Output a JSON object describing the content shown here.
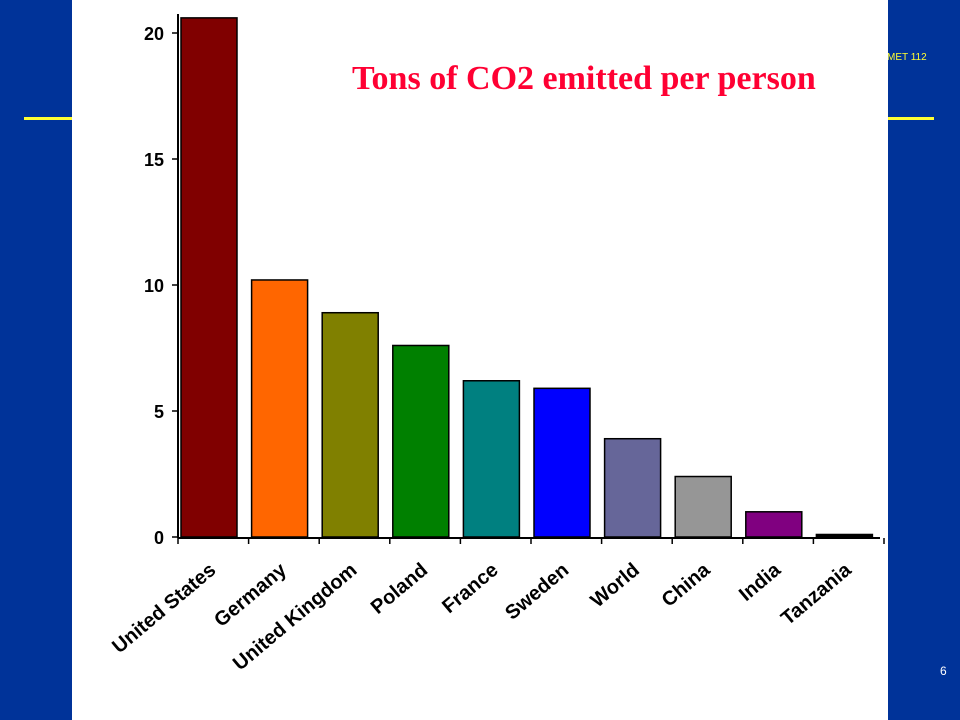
{
  "slide": {
    "course_code": "MET 112",
    "page_number": "6"
  },
  "chart_data": {
    "type": "bar",
    "title": "Tons of CO2 emitted per person",
    "xlabel": "",
    "ylabel": "",
    "categories": [
      "United States",
      "Germany",
      "United Kingdom",
      "Poland",
      "France",
      "Sweden",
      "World",
      "China",
      "India",
      "Tanzania"
    ],
    "values": [
      20.6,
      10.2,
      8.9,
      7.6,
      6.2,
      5.9,
      3.9,
      2.4,
      1.0,
      0.1
    ],
    "colors": [
      "#800000",
      "#ff6600",
      "#808000",
      "#008000",
      "#008080",
      "#0000ff",
      "#666699",
      "#969696",
      "#800080",
      "#000000"
    ],
    "yticks": [
      0,
      5,
      10,
      15,
      20
    ],
    "ylim": [
      0,
      21
    ],
    "grid": false,
    "legend": "none",
    "title_color": "#ff0033"
  }
}
